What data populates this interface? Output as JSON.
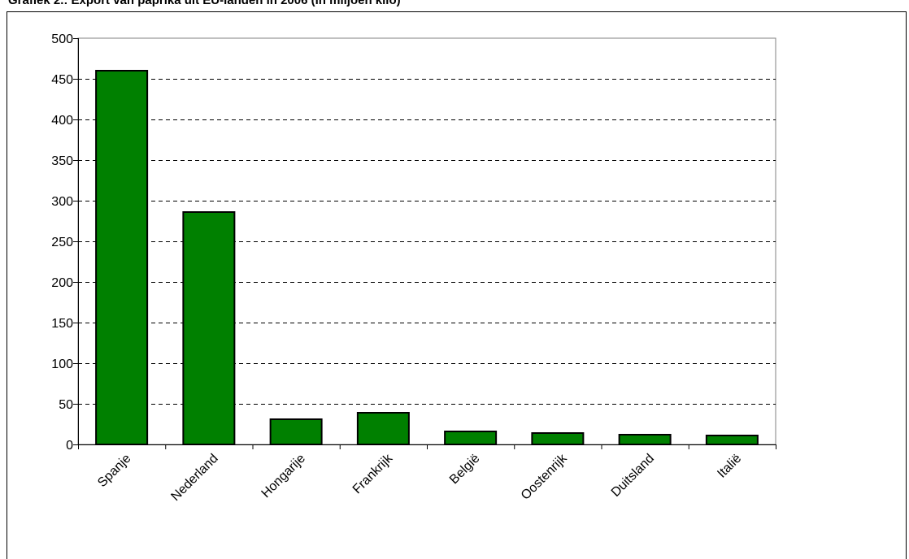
{
  "chart_data": {
    "type": "bar",
    "title": "Grafiek 2.: Export van paprika uit EU-landen in 2006 (in miljoen kilo)",
    "categories": [
      "Spanje",
      "Nederland",
      "Hongarije",
      "Frankrijk",
      "België",
      "Oostenrijk",
      "Duitsland",
      "Italië"
    ],
    "values": [
      460,
      286,
      31,
      39,
      16,
      14,
      12,
      11
    ],
    "yticks": [
      "0",
      "50",
      "100",
      "150",
      "200",
      "250",
      "300",
      "350",
      "400",
      "450",
      "500"
    ],
    "ylim": [
      0,
      500
    ],
    "grid": true,
    "legend": "none",
    "bar_color": "#008000"
  }
}
